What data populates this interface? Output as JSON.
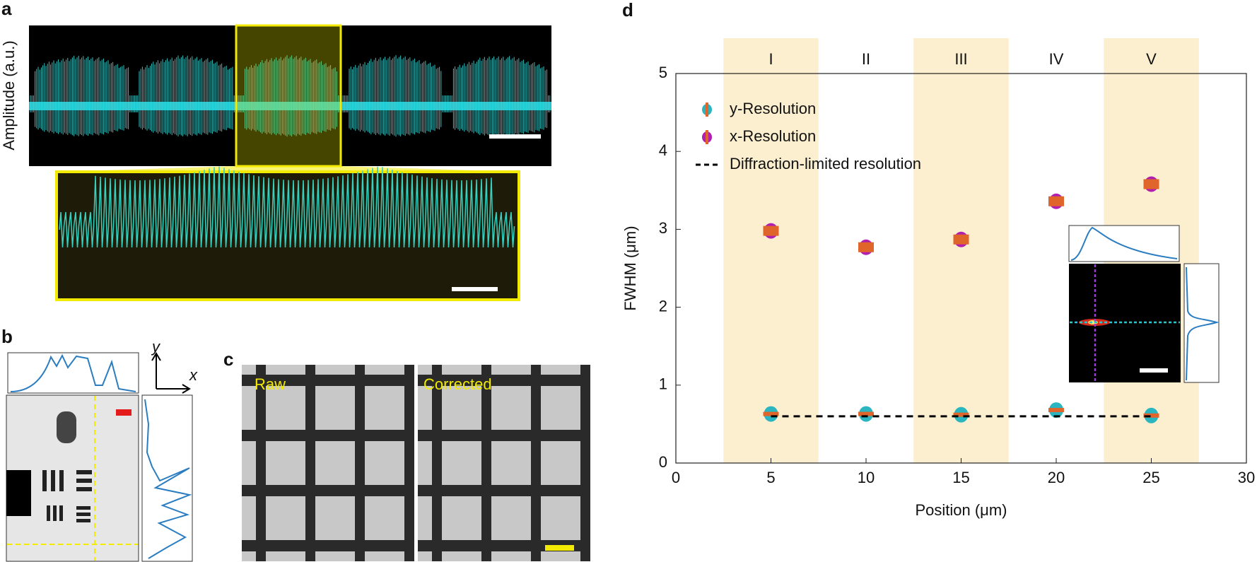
{
  "panel_a": {
    "label": "a",
    "y_label": "Amplitude (a.u.)"
  },
  "panel_b": {
    "label": "b",
    "axis_y": "y",
    "axis_x": "x"
  },
  "panel_c": {
    "label": "c",
    "left": "Raw",
    "right": "Corrected"
  },
  "chart_data": {
    "type": "scatter",
    "label": "d",
    "xlabel": "Position (μm)",
    "ylabel": "FWHM (μm)",
    "x": [
      5,
      10,
      15,
      20,
      25
    ],
    "series": [
      {
        "name": "y-Resolution",
        "color": "#2bb5c0",
        "values": [
          0.63,
          0.63,
          0.62,
          0.68,
          0.61
        ]
      },
      {
        "name": "x-Resolution",
        "color": "#b01fb0",
        "values": [
          2.98,
          2.77,
          2.87,
          3.36,
          3.58
        ]
      },
      {
        "name": "Diffraction-limited resolution",
        "color": "#000000",
        "style": "dashed",
        "values": [
          0.6,
          0.6,
          0.6,
          0.6,
          0.6
        ]
      }
    ],
    "error_color": "#e0652a",
    "bands": [
      [
        2.5,
        7.5
      ],
      [
        12.5,
        17.5
      ],
      [
        22.5,
        27.5
      ]
    ],
    "band_color": "#fcefcf",
    "regions": [
      "I",
      "II",
      "III",
      "IV",
      "V"
    ],
    "xlim": [
      0,
      30
    ],
    "xticks": [
      0,
      5,
      10,
      15,
      20,
      25,
      30
    ],
    "ylim": [
      0,
      5
    ],
    "yticks": [
      0,
      1,
      2,
      3,
      4,
      5
    ]
  }
}
